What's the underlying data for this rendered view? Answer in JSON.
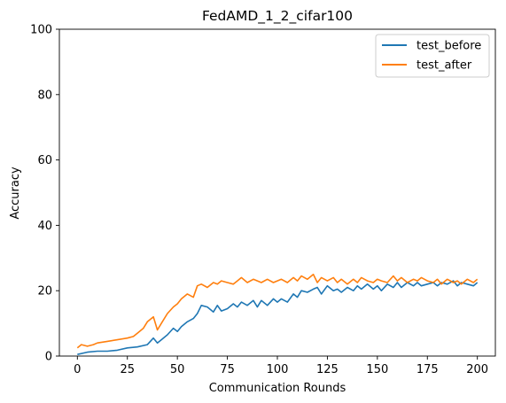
{
  "chart_data": {
    "type": "line",
    "title": "FedAMD_1_2_cifar100",
    "xlabel": "Communication Rounds",
    "ylabel": "Accuracy",
    "xlim": [
      -9,
      209
    ],
    "ylim": [
      0,
      100
    ],
    "xticks": [
      0,
      25,
      50,
      75,
      100,
      125,
      150,
      175,
      200
    ],
    "yticks": [
      0,
      20,
      40,
      60,
      80,
      100
    ],
    "grid": false,
    "legend_position": "top-right",
    "colors": {
      "test_before": "#1f77b4",
      "test_after": "#ff7f0e"
    },
    "series": [
      {
        "name": "test_before",
        "x": [
          0,
          5,
          10,
          15,
          20,
          25,
          30,
          35,
          38,
          40,
          42,
          45,
          48,
          50,
          52,
          55,
          58,
          60,
          62,
          65,
          68,
          70,
          72,
          75,
          78,
          80,
          82,
          85,
          88,
          90,
          92,
          95,
          98,
          100,
          102,
          105,
          108,
          110,
          112,
          115,
          118,
          120,
          122,
          125,
          128,
          130,
          132,
          135,
          138,
          140,
          142,
          145,
          148,
          150,
          152,
          155,
          158,
          160,
          162,
          165,
          168,
          170,
          172,
          175,
          178,
          180,
          182,
          185,
          188,
          190,
          192,
          195,
          198,
          200
        ],
        "y": [
          0.5,
          1.2,
          1.5,
          1.5,
          1.8,
          2.5,
          2.8,
          3.5,
          5.5,
          4.0,
          5.0,
          6.5,
          8.5,
          7.5,
          9.0,
          10.5,
          11.5,
          13.0,
          15.5,
          15.0,
          13.5,
          15.5,
          13.8,
          14.5,
          16.0,
          15.0,
          16.5,
          15.5,
          17.0,
          15.0,
          17.0,
          15.5,
          17.5,
          16.5,
          17.5,
          16.5,
          19.0,
          18.0,
          20.0,
          19.5,
          20.5,
          21.0,
          19.0,
          21.5,
          20.0,
          20.5,
          19.5,
          21.0,
          20.0,
          21.5,
          20.5,
          22.0,
          20.5,
          21.5,
          20.0,
          22.0,
          21.0,
          22.5,
          21.0,
          22.5,
          21.5,
          22.5,
          21.5,
          22.0,
          22.5,
          21.5,
          22.5,
          22.0,
          23.0,
          21.5,
          22.5,
          22.0,
          21.5,
          22.5
        ]
      },
      {
        "name": "test_after",
        "x": [
          0,
          2,
          5,
          8,
          10,
          15,
          20,
          25,
          28,
          30,
          33,
          35,
          38,
          40,
          42,
          45,
          48,
          50,
          52,
          55,
          58,
          60,
          62,
          65,
          68,
          70,
          72,
          75,
          78,
          80,
          82,
          85,
          88,
          90,
          92,
          95,
          98,
          100,
          102,
          105,
          108,
          110,
          112,
          115,
          118,
          120,
          122,
          125,
          128,
          130,
          132,
          135,
          138,
          140,
          142,
          145,
          148,
          150,
          152,
          155,
          158,
          160,
          162,
          165,
          168,
          170,
          172,
          175,
          178,
          180,
          182,
          185,
          188,
          190,
          192,
          195,
          198,
          200
        ],
        "y": [
          2.5,
          3.5,
          3.0,
          3.5,
          4.0,
          4.5,
          5.0,
          5.5,
          6.0,
          7.0,
          8.5,
          10.5,
          12.0,
          8.0,
          10.0,
          13.0,
          15.0,
          16.0,
          17.5,
          19.0,
          18.0,
          21.5,
          22.0,
          21.0,
          22.5,
          22.0,
          23.0,
          22.5,
          22.0,
          23.0,
          24.0,
          22.5,
          23.5,
          23.0,
          22.5,
          23.5,
          22.5,
          23.0,
          23.5,
          22.5,
          24.0,
          23.0,
          24.5,
          23.5,
          25.0,
          22.5,
          24.0,
          23.0,
          24.0,
          22.5,
          23.5,
          22.0,
          23.5,
          22.5,
          24.0,
          23.0,
          22.5,
          23.5,
          23.0,
          22.5,
          24.5,
          23.0,
          24.0,
          22.5,
          23.5,
          23.0,
          24.0,
          23.0,
          22.5,
          23.5,
          22.0,
          23.5,
          22.5,
          23.0,
          22.0,
          23.5,
          22.5,
          23.5
        ]
      }
    ]
  }
}
